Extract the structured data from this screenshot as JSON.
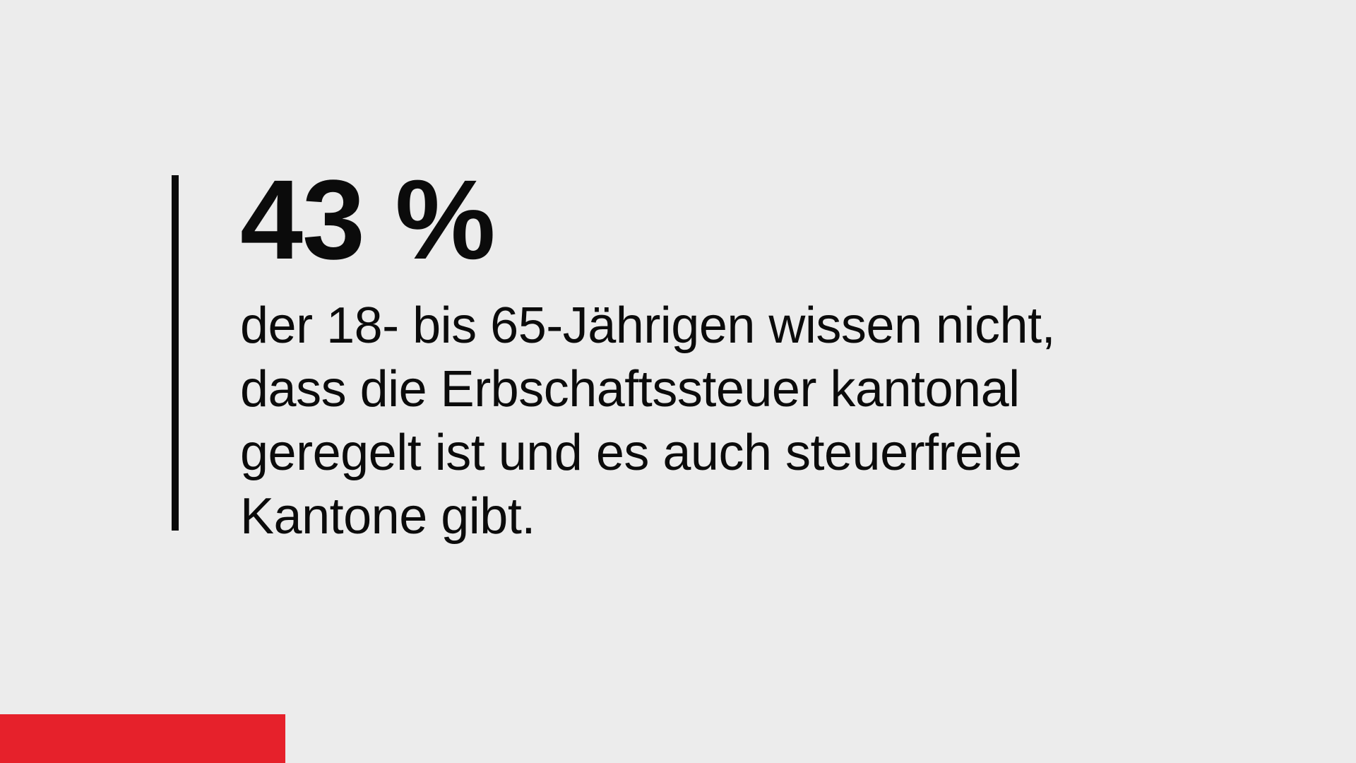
{
  "page": {
    "background_color": "#ECECEC",
    "text_color": "#0B0B0B",
    "accent_red": "#E6212B"
  },
  "statistic": {
    "value": "43 %",
    "description_lines": [
      "der 18- bis 65-Jährigen wissen nicht,",
      "dass die Erbschaftssteuer kantonal",
      "geregelt ist und es auch steuerfreie",
      "Kantone gibt."
    ]
  }
}
